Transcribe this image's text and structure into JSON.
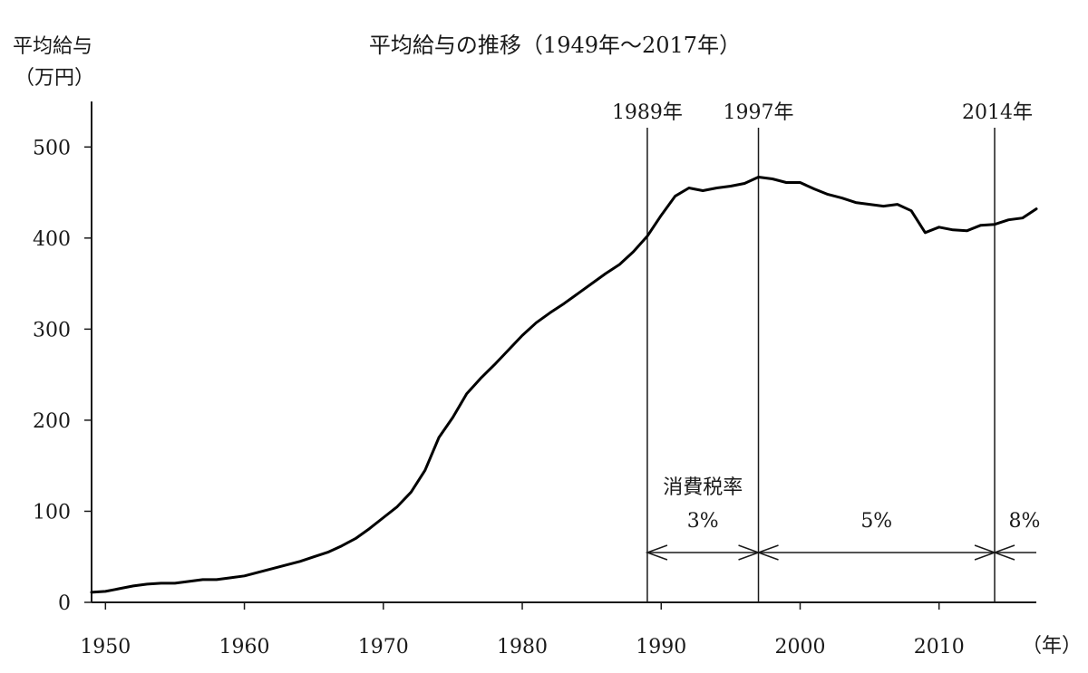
{
  "chart_data": {
    "type": "line",
    "title": "平均給与の推移（1949年〜2017年）",
    "ylabel": "平均給与",
    "yunit": "（万円）",
    "xunit": "（年）",
    "xlim": [
      1949,
      2017
    ],
    "ylim": [
      0,
      550
    ],
    "xticks": [
      "1950",
      "1960",
      "1970",
      "1980",
      "1990",
      "2000",
      "2010"
    ],
    "yticks": [
      "0",
      "100",
      "200",
      "300",
      "400",
      "500"
    ],
    "grid": false,
    "series": [
      {
        "x": [
          1949,
          1950,
          1951,
          1952,
          1953,
          1954,
          1955,
          1956,
          1957,
          1958,
          1959,
          1960,
          1961,
          1962,
          1963,
          1964,
          1965,
          1966,
          1967,
          1968,
          1969,
          1970,
          1971,
          1972,
          1973,
          1974,
          1975,
          1976,
          1977,
          1978,
          1979,
          1980,
          1981,
          1982,
          1983,
          1984,
          1985,
          1986,
          1987,
          1988,
          1989,
          1990,
          1991,
          1992,
          1993,
          1994,
          1995,
          1996,
          1997,
          1998,
          1999,
          2000,
          2001,
          2002,
          2003,
          2004,
          2005,
          2006,
          2007,
          2008,
          2009,
          2010,
          2011,
          2012,
          2013,
          2014,
          2015,
          2016,
          2017
        ],
        "values": [
          11,
          12,
          15,
          18,
          20,
          21,
          21,
          23,
          25,
          25,
          27,
          29,
          33,
          37,
          41,
          45,
          50,
          55,
          62,
          70,
          81,
          93,
          105,
          121,
          145,
          181,
          203,
          229,
          246,
          261,
          277,
          293,
          307,
          318,
          328,
          339,
          350,
          361,
          371,
          385,
          402,
          425,
          446,
          455,
          452,
          455,
          457,
          460,
          467,
          465,
          461,
          461,
          454,
          448,
          444,
          439,
          437,
          435,
          437,
          430,
          406,
          412,
          409,
          408,
          414,
          415,
          420,
          422,
          432
        ]
      }
    ],
    "markers": [
      {
        "year": 1989,
        "label": "1989年"
      },
      {
        "year": 1997,
        "label": "1997年"
      },
      {
        "year": 2014,
        "label": "2014年"
      }
    ],
    "annotation": {
      "heading": "消費税率",
      "rates": [
        {
          "from": 1989,
          "to": 1997,
          "label": "3%"
        },
        {
          "from": 1997,
          "to": 2014,
          "label": "5%"
        },
        {
          "from": 2014,
          "to": 2017,
          "label": "8%"
        }
      ]
    }
  }
}
